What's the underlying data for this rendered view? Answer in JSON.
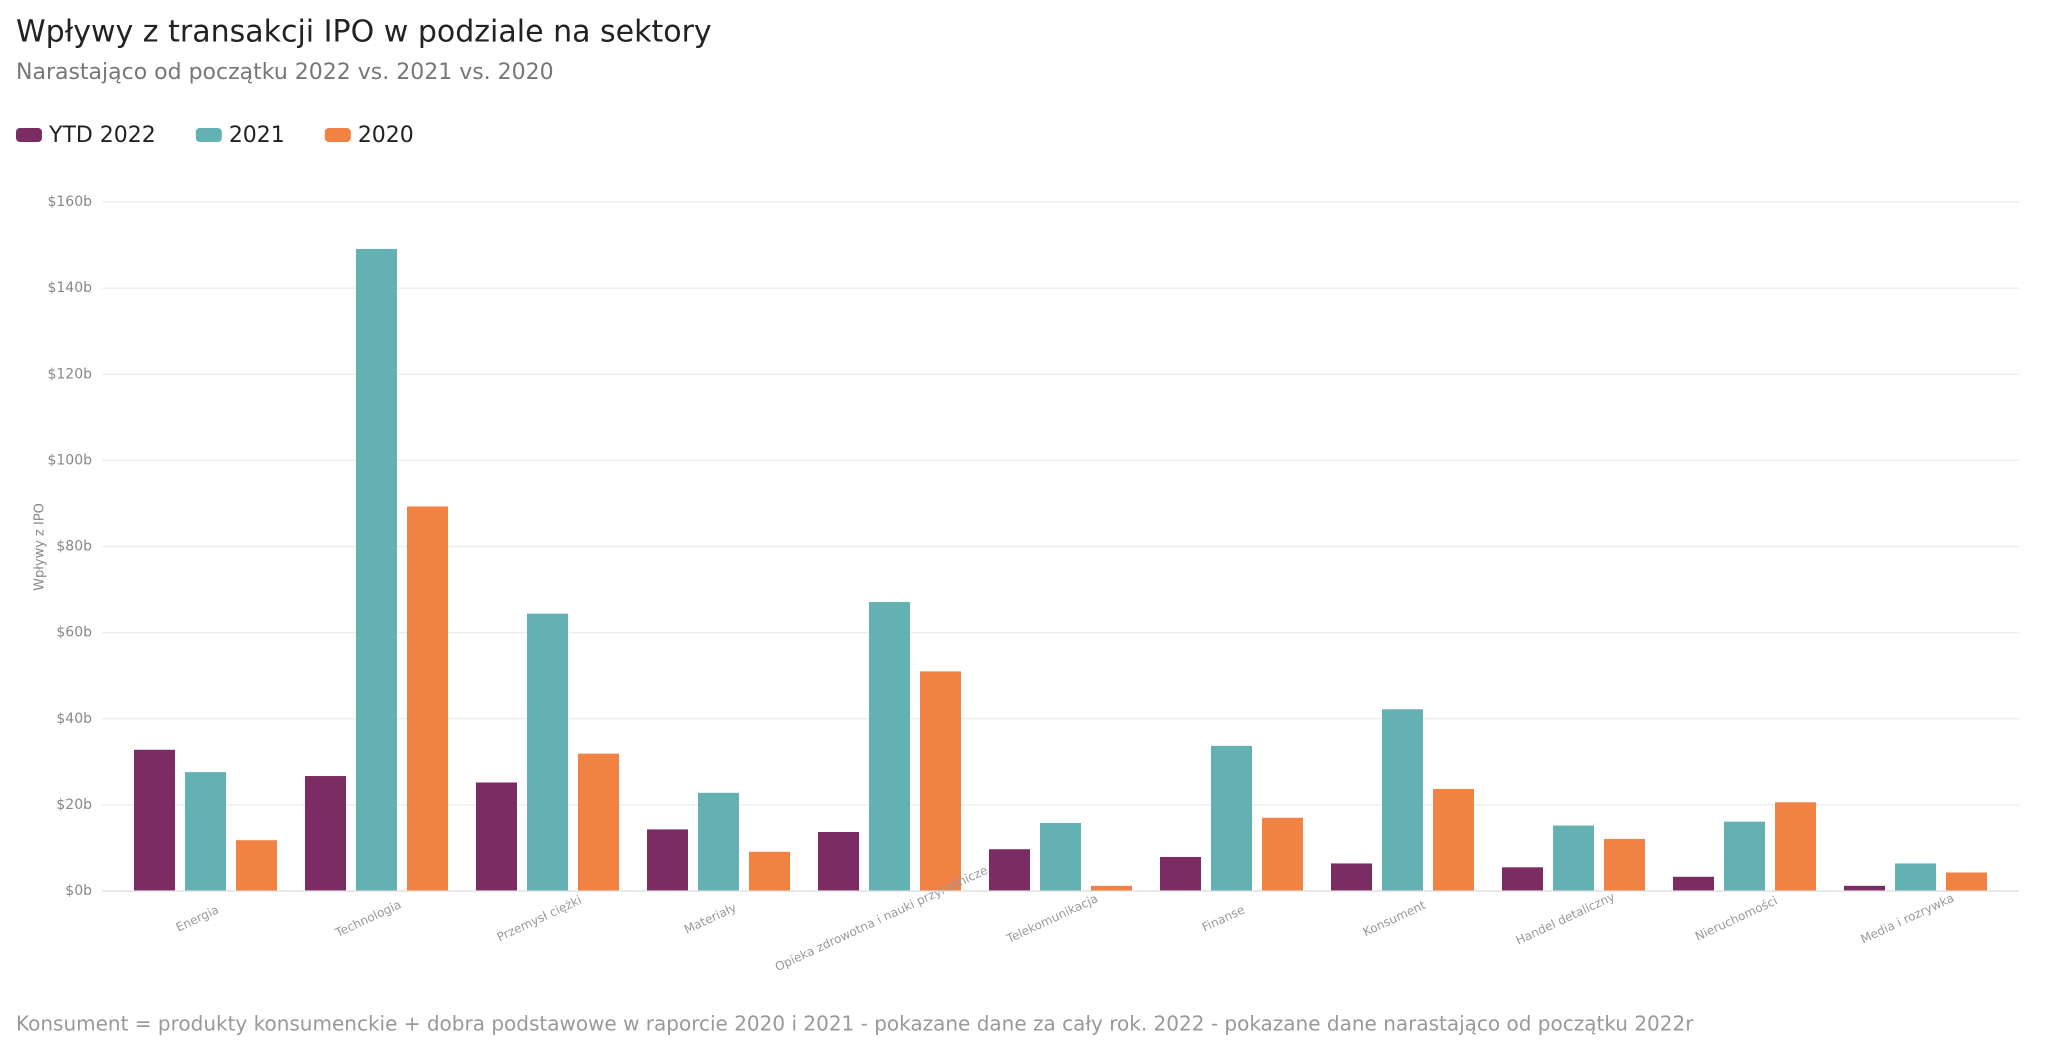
{
  "chart_data": {
    "type": "bar",
    "title": "Wpływy z transakcji IPO w podziale na sektory",
    "subtitle": "Narastająco od początku 2022 vs. 2021 vs. 2020",
    "y_label": "Wpływy z IPO",
    "footnote": "Konsument = produkty konsumenckie + dobra podstawowe w raporcie 2020 i 2021 - pokazane dane za cały rok. 2022 - pokazane dane narastająco od początku 2022r",
    "categories": [
      "Energia",
      "Technologia",
      "Przemysł ciężki",
      "Materiały",
      "Opieka zdrowotna i nauki przyrodnicze",
      "Telekomunikacja",
      "Finanse",
      "Konsument",
      "Handel detaliczny",
      "Nieruchomości",
      "Media i rozrywka"
    ],
    "series": [
      {
        "name": "YTD 2022",
        "color": "#7b2d63",
        "values": [
          32.8,
          26.7,
          25.2,
          14.3,
          13.7,
          9.7,
          7.9,
          6.4,
          5.5,
          3.3,
          1.2
        ]
      },
      {
        "name": "2021",
        "color": "#63b1b3",
        "values": [
          27.6,
          149.1,
          64.4,
          22.8,
          67.1,
          15.8,
          33.7,
          42.2,
          15.2,
          16.1,
          6.4
        ]
      },
      {
        "name": "2020",
        "color": "#f08244",
        "values": [
          11.8,
          89.3,
          31.9,
          9.1,
          51.0,
          1.2,
          17.0,
          23.7,
          12.1,
          20.6,
          4.3
        ]
      }
    ],
    "ylim": [
      0,
      160
    ],
    "yticks": [
      {
        "value": 0,
        "label": "$0b"
      },
      {
        "value": 20,
        "label": "$20b"
      },
      {
        "value": 40,
        "label": "$40b"
      },
      {
        "value": 60,
        "label": "$60b"
      },
      {
        "value": 80,
        "label": "$80b"
      },
      {
        "value": 100,
        "label": "$100b"
      },
      {
        "value": 120,
        "label": "$120b"
      },
      {
        "value": 140,
        "label": "$140b"
      },
      {
        "value": 160,
        "label": "$160b"
      }
    ],
    "grid": true
  }
}
